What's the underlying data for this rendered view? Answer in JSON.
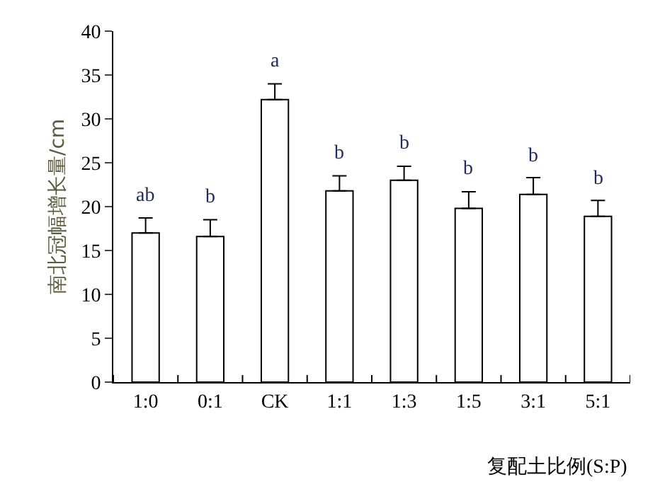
{
  "chart_data": {
    "type": "bar",
    "xlabel": "复配土比例(S:P)",
    "ylabel": "南北冠幅增长量/cm",
    "categories": [
      "1:0",
      "0:1",
      "CK",
      "1:1",
      "1:3",
      "1:5",
      "3:1",
      "5:1"
    ],
    "values": [
      17.0,
      16.6,
      32.2,
      21.8,
      23.0,
      19.8,
      21.4,
      18.9
    ],
    "errors": [
      [
        17.0,
        18.7
      ],
      [
        16.6,
        18.5
      ],
      [
        32.2,
        34.0
      ],
      [
        21.8,
        23.5
      ],
      [
        23.0,
        24.6
      ],
      [
        19.8,
        21.7
      ],
      [
        21.4,
        23.3
      ],
      [
        18.9,
        20.7
      ]
    ],
    "color": "#ffffff",
    "ylim": [
      0,
      40
    ],
    "yticks": [
      0,
      5,
      10,
      15,
      20,
      25,
      30,
      35,
      40
    ],
    "annotations": [
      {
        "text": "ab",
        "x": "1:0",
        "y": 18.7
      },
      {
        "text": "b",
        "x": "0:1",
        "y": 18.5
      },
      {
        "text": "a",
        "x": "CK",
        "y": 34.0
      },
      {
        "text": "b",
        "x": "1:1",
        "y": 23.5
      },
      {
        "text": "b",
        "x": "1:3",
        "y": 24.6
      },
      {
        "text": "b",
        "x": "1:5",
        "y": 21.7
      },
      {
        "text": "b",
        "x": "3:1",
        "y": 23.3
      },
      {
        "text": "b",
        "x": "5:1",
        "y": 20.7
      }
    ]
  }
}
